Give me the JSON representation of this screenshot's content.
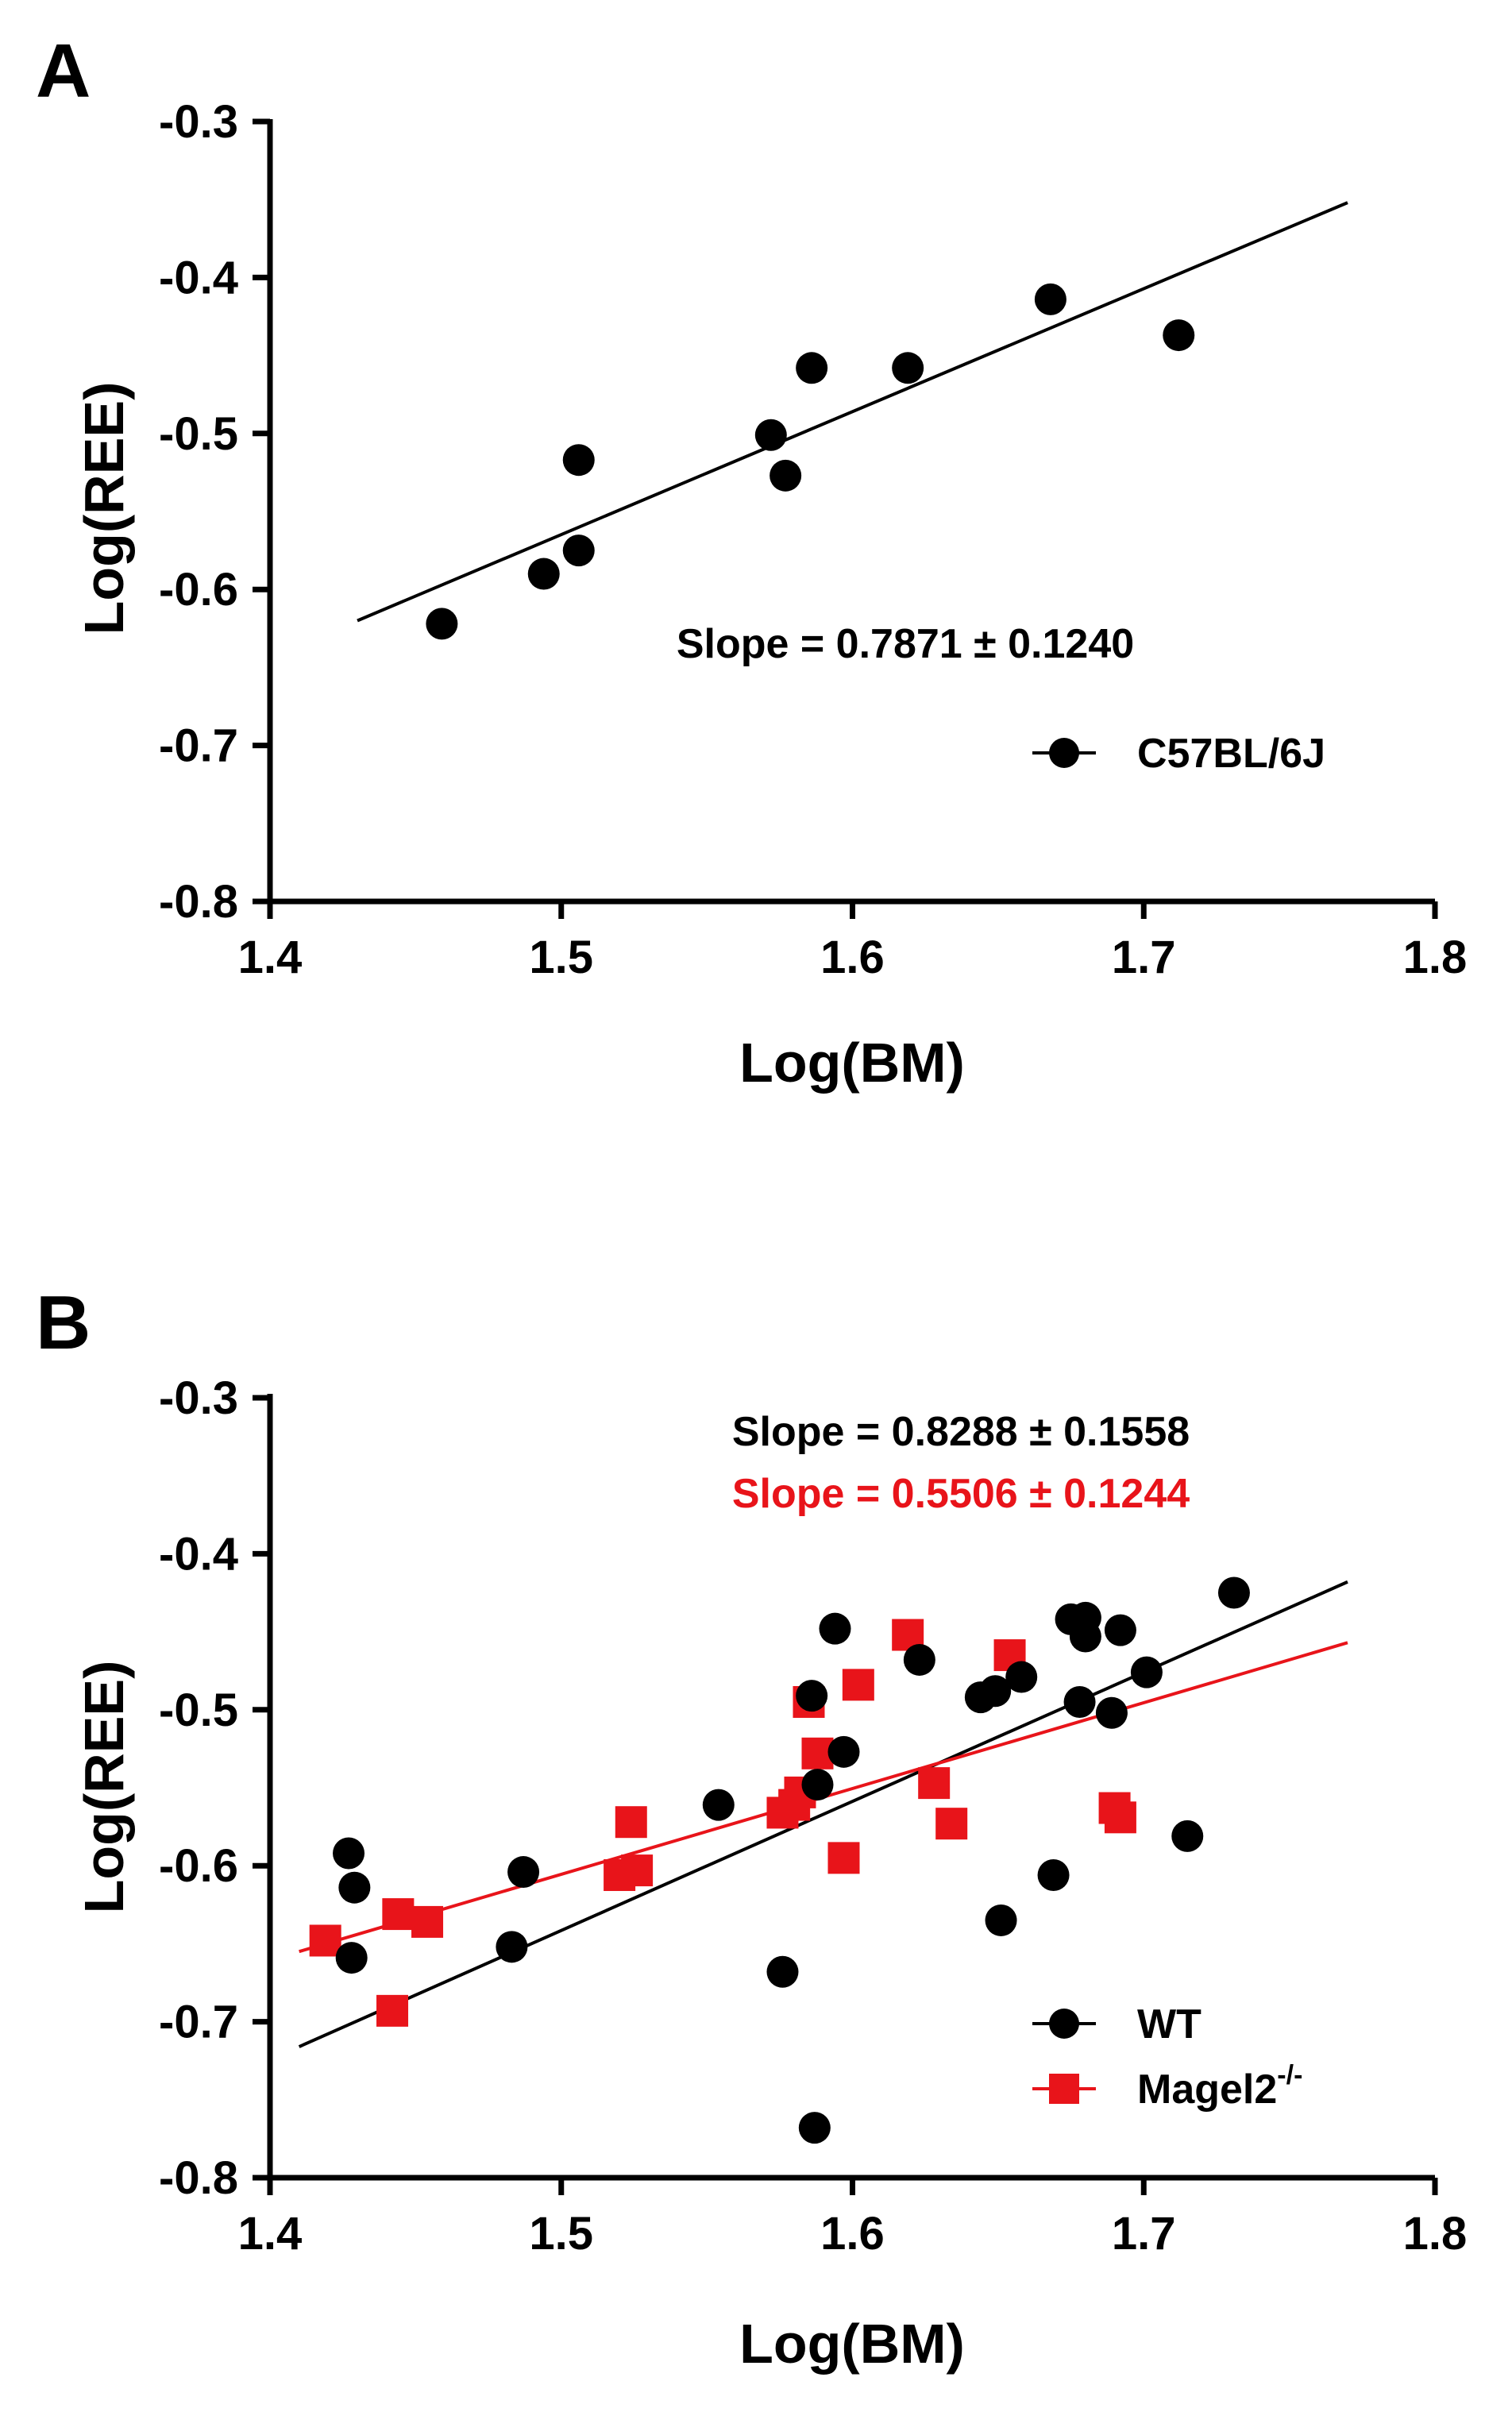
{
  "chart_data": [
    {
      "panel": "A",
      "type": "scatter",
      "title": "",
      "xlabel": "Log(BM)",
      "ylabel": "Log(REE)",
      "xlim": [
        1.4,
        1.8
      ],
      "ylim": [
        -0.8,
        -0.3
      ],
      "xticks": [
        "1.4",
        "1.5",
        "1.6",
        "1.7",
        "1.8"
      ],
      "yticks": [
        "-0.3",
        "-0.4",
        "-0.5",
        "-0.6",
        "-0.7",
        "-0.8"
      ],
      "annotations": [
        {
          "text": "Slope = 0.7871 ± 0.1240",
          "color": "#000000"
        }
      ],
      "series": [
        {
          "name": "C57BL/6J",
          "color": "#000000",
          "marker": "circle",
          "points": [
            {
              "x": 1.459,
              "y": -0.622
            },
            {
              "x": 1.494,
              "y": -0.59
            },
            {
              "x": 1.506,
              "y": -0.517
            },
            {
              "x": 1.506,
              "y": -0.575
            },
            {
              "x": 1.572,
              "y": -0.501
            },
            {
              "x": 1.577,
              "y": -0.527
            },
            {
              "x": 1.586,
              "y": -0.458
            },
            {
              "x": 1.619,
              "y": -0.458
            },
            {
              "x": 1.668,
              "y": -0.414
            },
            {
              "x": 1.712,
              "y": -0.437
            }
          ],
          "fit": {
            "x": [
              1.43,
              1.77
            ],
            "y": [
              -0.62,
              -0.352
            ]
          }
        }
      ]
    },
    {
      "panel": "B",
      "type": "scatter",
      "title": "",
      "xlabel": "Log(BM)",
      "ylabel": "Log(REE)",
      "xlim": [
        1.4,
        1.8
      ],
      "ylim": [
        -0.8,
        -0.3
      ],
      "xticks": [
        "1.4",
        "1.5",
        "1.6",
        "1.7",
        "1.8"
      ],
      "yticks": [
        "-0.3",
        "-0.4",
        "-0.5",
        "-0.6",
        "-0.7",
        "-0.8"
      ],
      "annotations": [
        {
          "text": "Slope = 0.8288 ± 0.1558",
          "color": "#000000"
        },
        {
          "text": "Slope = 0.5506 ± 0.1244",
          "color": "#e8141a"
        }
      ],
      "series": [
        {
          "name": "WT",
          "color": "#000000",
          "marker": "circle",
          "points": [
            {
              "x": 1.427,
              "y": -0.592
            },
            {
              "x": 1.429,
              "y": -0.614
            },
            {
              "x": 1.428,
              "y": -0.659
            },
            {
              "x": 1.483,
              "y": -0.652
            },
            {
              "x": 1.487,
              "y": -0.604
            },
            {
              "x": 1.554,
              "y": -0.561
            },
            {
              "x": 1.576,
              "y": -0.668
            },
            {
              "x": 1.586,
              "y": -0.491
            },
            {
              "x": 1.588,
              "y": -0.548
            },
            {
              "x": 1.594,
              "y": -0.448
            },
            {
              "x": 1.597,
              "y": -0.527
            },
            {
              "x": 1.587,
              "y": -0.768
            },
            {
              "x": 1.623,
              "y": -0.468
            },
            {
              "x": 1.644,
              "y": -0.492
            },
            {
              "x": 1.649,
              "y": -0.488
            },
            {
              "x": 1.651,
              "y": -0.635
            },
            {
              "x": 1.658,
              "y": -0.479
            },
            {
              "x": 1.669,
              "y": -0.606
            },
            {
              "x": 1.675,
              "y": -0.442
            },
            {
              "x": 1.68,
              "y": -0.441
            },
            {
              "x": 1.68,
              "y": -0.453
            },
            {
              "x": 1.678,
              "y": -0.495
            },
            {
              "x": 1.689,
              "y": -0.502
            },
            {
              "x": 1.692,
              "y": -0.449
            },
            {
              "x": 1.701,
              "y": -0.476
            },
            {
              "x": 1.715,
              "y": -0.581
            },
            {
              "x": 1.731,
              "y": -0.425
            }
          ],
          "fit": {
            "x": [
              1.41,
              1.77
            ],
            "y": [
              -0.716,
              -0.418
            ]
          }
        },
        {
          "name": "Magel2",
          "name_superscript": "-/-",
          "color": "#e8141a",
          "marker": "square",
          "points": [
            {
              "x": 1.419,
              "y": -0.648
            },
            {
              "x": 1.442,
              "y": -0.693
            },
            {
              "x": 1.444,
              "y": -0.631
            },
            {
              "x": 1.454,
              "y": -0.636
            },
            {
              "x": 1.52,
              "y": -0.606
            },
            {
              "x": 1.524,
              "y": -0.572
            },
            {
              "x": 1.526,
              "y": -0.603
            },
            {
              "x": 1.576,
              "y": -0.566
            },
            {
              "x": 1.58,
              "y": -0.561
            },
            {
              "x": 1.582,
              "y": -0.553
            },
            {
              "x": 1.585,
              "y": -0.495
            },
            {
              "x": 1.588,
              "y": -0.528
            },
            {
              "x": 1.597,
              "y": -0.595
            },
            {
              "x": 1.602,
              "y": -0.484
            },
            {
              "x": 1.619,
              "y": -0.452
            },
            {
              "x": 1.628,
              "y": -0.547
            },
            {
              "x": 1.634,
              "y": -0.573
            },
            {
              "x": 1.654,
              "y": -0.465
            },
            {
              "x": 1.69,
              "y": -0.563
            },
            {
              "x": 1.692,
              "y": -0.569
            }
          ],
          "fit": {
            "x": [
              1.41,
              1.77
            ],
            "y": [
              -0.655,
              -0.457
            ]
          }
        }
      ]
    }
  ]
}
